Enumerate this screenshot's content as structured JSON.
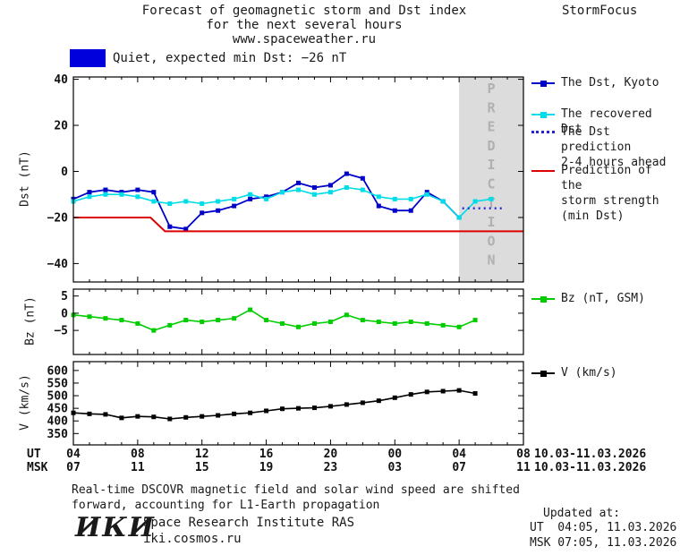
{
  "header": {
    "title_line1": "Forecast of geomagnetic storm and Dst index",
    "title_line2": "for the next several hours",
    "title_line3": "www.spaceweather.ru",
    "brand": "StormFocus"
  },
  "status": {
    "label": "Quiet, expected min Dst: −26 nT"
  },
  "legend": {
    "dst_kyoto": "The Dst, Kyoto",
    "recovered": "The recovered Dst",
    "prediction": "The Dst prediction\n2-4 hours ahead",
    "storm_strength": "Prediction of the\nstorm strength\n(min Dst)",
    "bz": "Bz (nT, GSM)",
    "v": "V (km/s)"
  },
  "xaxis": {
    "ut_label": "UT",
    "msk_label": "MSK",
    "ut_ticks": [
      "04",
      "08",
      "12",
      "16",
      "20",
      "00",
      "04",
      "08"
    ],
    "msk_ticks": [
      "07",
      "11",
      "15",
      "19",
      "23",
      "03",
      "07",
      "11"
    ],
    "ut_date": "10.03-11.03.2026",
    "msk_date": "10.03-11.03.2026"
  },
  "footer": {
    "note_line1": "Real-time DSCOVR magnetic field and solar wind speed are shifted",
    "note_line2": "forward, accounting for L1-Earth propagation",
    "logo": "ИКИ",
    "institute": "Space Research Institute RAS",
    "site": "iki.cosmos.ru",
    "updated_label": "Updated at:",
    "updated_ut": "UT  04:05, 11.03.2026",
    "updated_msk": "MSK 07:05, 11.03.2026"
  },
  "colors": {
    "kyoto": "#0000c8",
    "recovered": "#00dde8",
    "prediction_line": "#2222dd",
    "storm": "#dd0000",
    "bz": "#00cc00",
    "v": "#000000",
    "quiet_swatch": "#0000dd",
    "prediction_zone_bg": "#dcdcdc",
    "prediction_zone_text": "#b0b0b0"
  },
  "chart_data": [
    {
      "id": "dst",
      "type": "line",
      "ylabel": "Dst (nT)",
      "ylim": [
        -48,
        41
      ],
      "yticks": [
        40,
        20,
        0,
        -20,
        -40
      ],
      "xlim": [
        0,
        28
      ],
      "x_unit": "hours since 04 UT 10.03.2026",
      "grid": false,
      "prediction_zone": {
        "start": 24,
        "end": 28,
        "label": "PREDICTION"
      },
      "series": [
        {
          "name": "The Dst, Kyoto",
          "color": "#0000c8",
          "marker": true,
          "width": 1.8,
          "points": [
            [
              0,
              -12
            ],
            [
              1,
              -9
            ],
            [
              2,
              -8
            ],
            [
              3,
              -9
            ],
            [
              4,
              -8
            ],
            [
              5,
              -9
            ],
            [
              6,
              -24
            ],
            [
              7,
              -25
            ],
            [
              8,
              -18
            ],
            [
              9,
              -17
            ],
            [
              10,
              -15
            ],
            [
              11,
              -12
            ],
            [
              12,
              -11
            ],
            [
              13,
              -9
            ],
            [
              14,
              -5
            ],
            [
              15,
              -7
            ],
            [
              16,
              -6
            ],
            [
              17,
              -1
            ],
            [
              18,
              -3
            ],
            [
              19,
              -15
            ],
            [
              20,
              -17
            ],
            [
              21,
              -17
            ],
            [
              22,
              -9
            ],
            [
              23,
              -13
            ],
            [
              24,
              -20
            ]
          ]
        },
        {
          "name": "The recovered Dst",
          "color": "#00dde8",
          "marker": true,
          "width": 1.6,
          "points": [
            [
              0,
              -13
            ],
            [
              1,
              -11
            ],
            [
              2,
              -10
            ],
            [
              3,
              -10
            ],
            [
              4,
              -11
            ],
            [
              5,
              -13
            ],
            [
              6,
              -14
            ],
            [
              7,
              -13
            ],
            [
              8,
              -14
            ],
            [
              9,
              -13
            ],
            [
              10,
              -12
            ],
            [
              11,
              -10
            ],
            [
              12,
              -12
            ],
            [
              13,
              -9
            ],
            [
              14,
              -8
            ],
            [
              15,
              -10
            ],
            [
              16,
              -9
            ],
            [
              17,
              -7
            ],
            [
              18,
              -8
            ],
            [
              19,
              -11
            ],
            [
              20,
              -12
            ],
            [
              21,
              -12
            ],
            [
              22,
              -10
            ],
            [
              23,
              -13
            ],
            [
              24,
              -20
            ],
            [
              25,
              -13
            ],
            [
              26,
              -12
            ]
          ]
        },
        {
          "name": "The Dst prediction 2-4 hours ahead",
          "color": "#2222dd",
          "style": "dotted",
          "width": 2.4,
          "points": [
            [
              24.2,
              -16
            ],
            [
              26.8,
              -16
            ]
          ]
        },
        {
          "name": "Prediction of the storm strength (min Dst)",
          "color": "#dd0000",
          "width": 2,
          "points": [
            [
              0,
              -20
            ],
            [
              4.8,
              -20
            ],
            [
              5.7,
              -26
            ],
            [
              28,
              -26
            ]
          ]
        }
      ]
    },
    {
      "id": "bz",
      "type": "line",
      "ylabel": "Bz (nT)",
      "ylim": [
        -12,
        7
      ],
      "yticks": [
        5,
        0,
        -5
      ],
      "xlim": [
        0,
        28
      ],
      "grid": false,
      "series": [
        {
          "name": "Bz (nT, GSM)",
          "color": "#00cc00",
          "marker": true,
          "width": 1.6,
          "points": [
            [
              0,
              -0.5
            ],
            [
              1,
              -1
            ],
            [
              2,
              -1.5
            ],
            [
              3,
              -2
            ],
            [
              4,
              -3
            ],
            [
              5,
              -5
            ],
            [
              6,
              -3.5
            ],
            [
              7,
              -2
            ],
            [
              8,
              -2.5
            ],
            [
              9,
              -2
            ],
            [
              10,
              -1.5
            ],
            [
              11,
              1
            ],
            [
              12,
              -2
            ],
            [
              13,
              -3
            ],
            [
              14,
              -4
            ],
            [
              15,
              -3
            ],
            [
              16,
              -2.5
            ],
            [
              17,
              -0.5
            ],
            [
              18,
              -2
            ],
            [
              19,
              -2.5
            ],
            [
              20,
              -3
            ],
            [
              21,
              -2.5
            ],
            [
              22,
              -3
            ],
            [
              23,
              -3.5
            ],
            [
              24,
              -4
            ],
            [
              25,
              -2
            ]
          ]
        }
      ]
    },
    {
      "id": "v",
      "type": "line",
      "ylabel": "V (km/s)",
      "ylim": [
        305,
        635
      ],
      "yticks": [
        600,
        550,
        500,
        450,
        400,
        350
      ],
      "xlim": [
        0,
        28
      ],
      "grid": false,
      "series": [
        {
          "name": "V (km/s)",
          "color": "#000000",
          "marker": true,
          "width": 1.6,
          "points": [
            [
              0,
              432
            ],
            [
              1,
              428
            ],
            [
              2,
              426
            ],
            [
              3,
              412
            ],
            [
              4,
              418
            ],
            [
              5,
              416
            ],
            [
              6,
              408
            ],
            [
              7,
              414
            ],
            [
              8,
              418
            ],
            [
              9,
              422
            ],
            [
              10,
              428
            ],
            [
              11,
              432
            ],
            [
              12,
              440
            ],
            [
              13,
              448
            ],
            [
              14,
              450
            ],
            [
              15,
              452
            ],
            [
              16,
              458
            ],
            [
              17,
              465
            ],
            [
              18,
              472
            ],
            [
              19,
              480
            ],
            [
              20,
              492
            ],
            [
              21,
              505
            ],
            [
              22,
              515
            ],
            [
              23,
              518
            ],
            [
              24,
              521
            ],
            [
              25,
              509
            ]
          ]
        }
      ]
    }
  ]
}
